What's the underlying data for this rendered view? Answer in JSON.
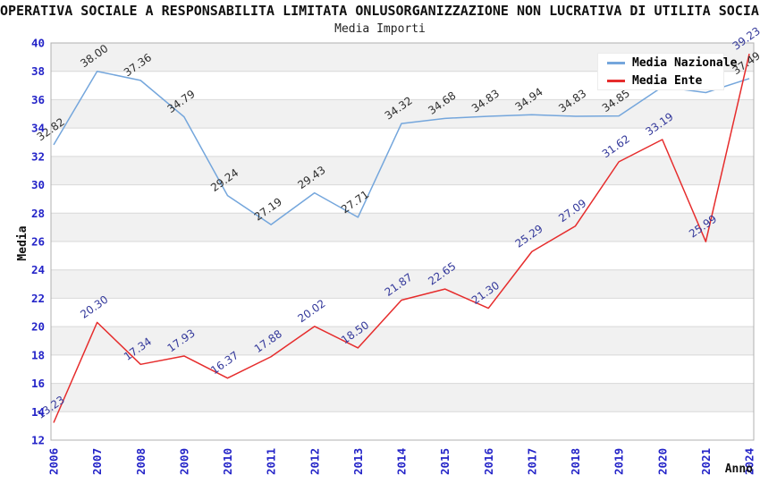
{
  "header": {
    "title": "OPERATIVA SOCIALE A RESPONSABILITA LIMITATA ONLUSORGANIZZAZIONE NON LUCRATIVA DI UTILITA SOCIALE",
    "subtitle": "Media Importi"
  },
  "chart_data": {
    "type": "line",
    "title": "Media Importi",
    "x_axis": {
      "label": "Anno",
      "categories": [
        "2006",
        "2007",
        "2008",
        "2009",
        "2010",
        "2011",
        "2012",
        "2013",
        "2014",
        "2015",
        "2016",
        "2017",
        "2018",
        "2019",
        "2020",
        "2021",
        "2024"
      ]
    },
    "y_axis": {
      "label": "Media",
      "min": 12,
      "max": 40,
      "tick_step": 2,
      "ticks": [
        12,
        14,
        16,
        18,
        20,
        22,
        24,
        26,
        28,
        30,
        32,
        34,
        36,
        38,
        40
      ]
    },
    "legend": {
      "position": "top-right",
      "items": [
        "Media Nazionale",
        "Media Ente"
      ]
    },
    "grid": {
      "horizontal_gridlines": true,
      "alternating_bands": true,
      "vertical_gridlines": false
    },
    "series": [
      {
        "name": "Media Nazionale",
        "color": "#74a6dc",
        "label_color": "#2e2e2e",
        "values": [
          32.82,
          38.0,
          37.36,
          34.79,
          29.24,
          27.19,
          29.43,
          27.71,
          34.32,
          34.68,
          34.83,
          34.94,
          34.83,
          34.85,
          36.9,
          36.5,
          37.49
        ],
        "point_labels": [
          "32.82",
          "38.00",
          "37.36",
          "34.79",
          "29.24",
          "27.19",
          "29.43",
          "27.71",
          "34.32",
          "34.68",
          "34.83",
          "34.94",
          "34.83",
          "34.85",
          "",
          "",
          "37.49"
        ]
      },
      {
        "name": "Media Ente",
        "color": "#e62c2c",
        "label_color": "#34399b",
        "values": [
          13.23,
          20.3,
          17.34,
          17.93,
          16.37,
          17.88,
          20.02,
          18.5,
          21.87,
          22.65,
          21.3,
          25.29,
          27.09,
          31.62,
          33.19,
          25.99,
          39.23
        ],
        "point_labels": [
          "13.23",
          "20.30",
          "17.34",
          "17.93",
          "16.37",
          "17.88",
          "20.02",
          "18.50",
          "21.87",
          "22.65",
          "21.30",
          "25.29",
          "27.09",
          "31.62",
          "33.19",
          "25.99",
          "39.23"
        ]
      }
    ],
    "style": {
      "axis_tick_color": "#2424c8",
      "axis_title_color": "#111111",
      "band_color": "#f1f1f1",
      "gridline_color": "#d8d8d8",
      "border_color": "#b0b0b0",
      "background_color": "#ffffff"
    }
  }
}
